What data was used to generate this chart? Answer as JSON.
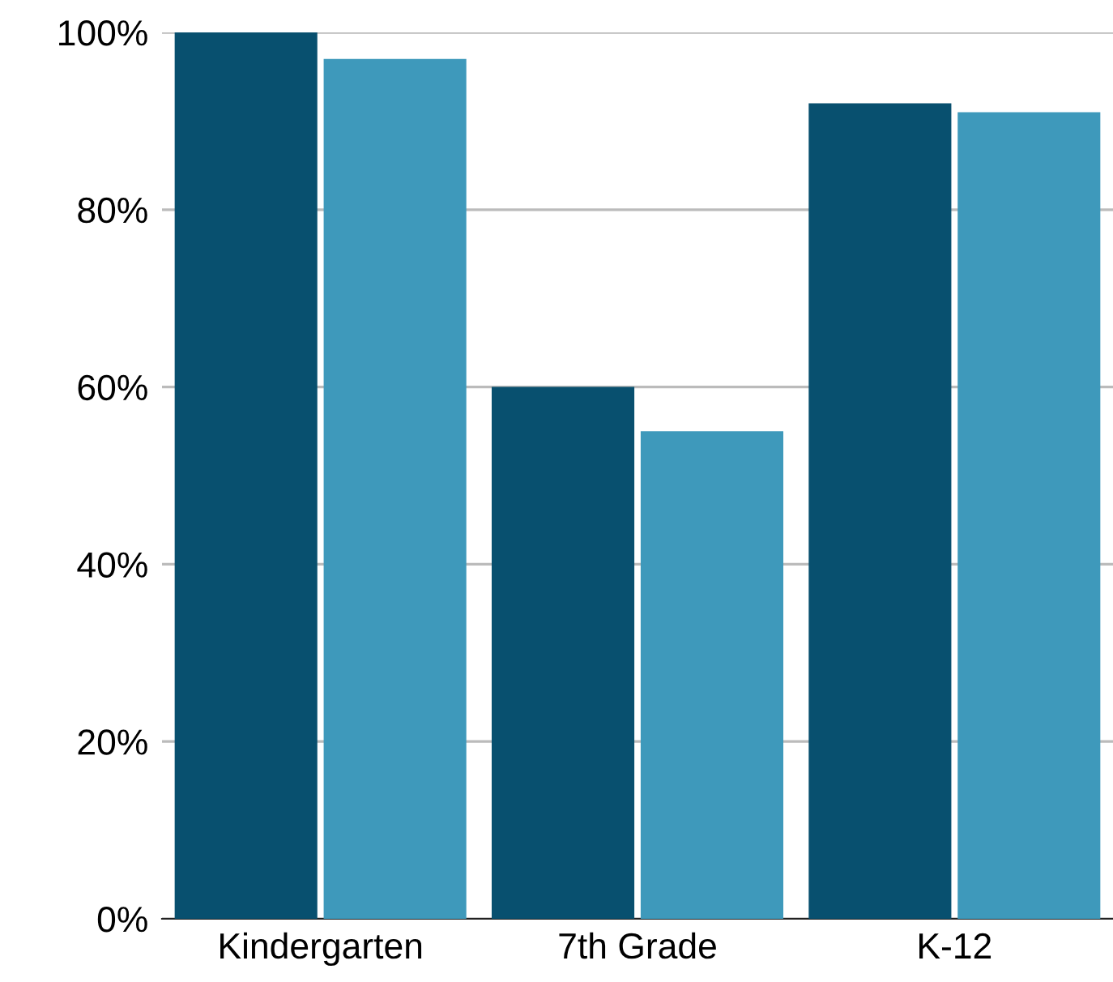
{
  "chart_data": {
    "type": "bar",
    "categories": [
      "Kindergarten",
      "7th Grade",
      "K-12"
    ],
    "series": [
      {
        "color": "#08506f",
        "values": [
          100,
          60,
          92
        ]
      },
      {
        "color": "#3e99bb",
        "values": [
          97,
          55,
          91
        ]
      }
    ],
    "ylim": [
      0,
      100
    ],
    "yticks": [
      {
        "value": 0,
        "label": "0%"
      },
      {
        "value": 20,
        "label": "20%"
      },
      {
        "value": 40,
        "label": "40%"
      },
      {
        "value": 60,
        "label": "60%"
      },
      {
        "value": 80,
        "label": "80%"
      },
      {
        "value": 100,
        "label": "100%"
      }
    ],
    "grid": "y"
  }
}
